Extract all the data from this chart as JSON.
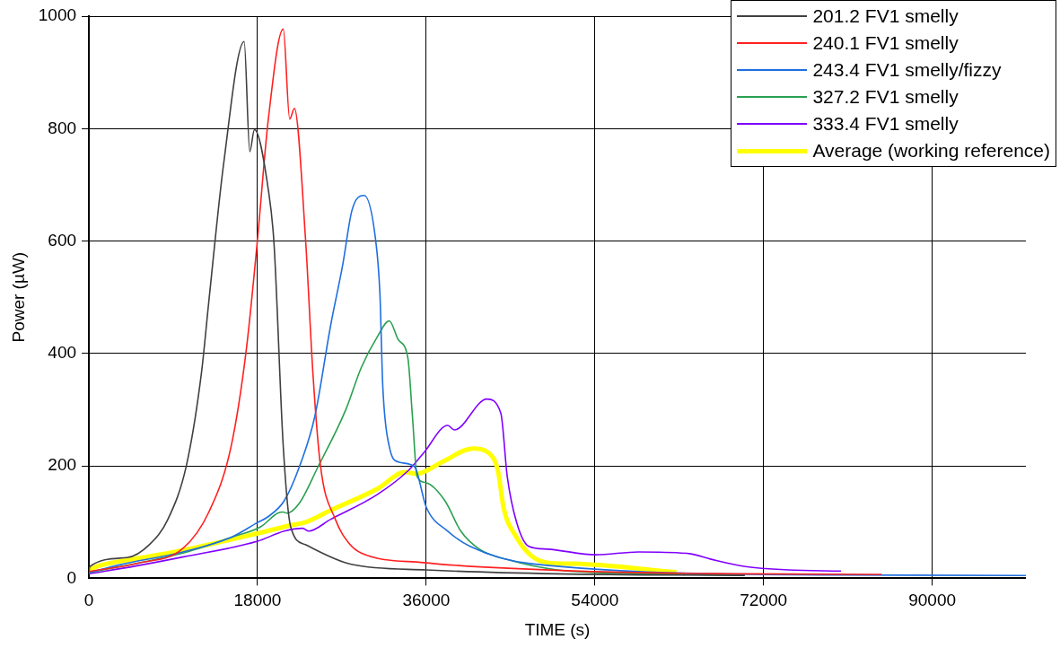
{
  "chart_data": {
    "type": "line",
    "xlabel": "TIME (s)",
    "ylabel": "Power (µW)",
    "xlim": [
      0,
      100000
    ],
    "ylim": [
      0,
      1000
    ],
    "xticks": [
      0,
      18000,
      36000,
      54000,
      72000,
      90000
    ],
    "yticks": [
      0,
      200,
      400,
      600,
      800,
      1000
    ],
    "grid": true,
    "legend": "top right",
    "marker": "none",
    "line_style": "solid",
    "series": [
      {
        "name": "201.2 FV1 smelly",
        "color": "#404040",
        "x": [
          0,
          100,
          4070,
          6450,
          8430,
          10420,
          12000,
          12800,
          14390,
          16570,
          17170,
          17660,
          19150,
          19750,
          20740,
          21530,
          23100,
          28000,
          36000,
          50000,
          70000
        ],
        "values": [
          12,
          21,
          37,
          60,
          105,
          202,
          364,
          493,
          739,
          955,
          759,
          798,
          691,
          597,
          235,
          92,
          60,
          25,
          15,
          8,
          5
        ]
      },
      {
        "name": "240.1 FV1 smelly",
        "color": "#ff2020",
        "x": [
          0,
          5260,
          10020,
          12800,
          15180,
          16770,
          17960,
          19150,
          20740,
          21430,
          21930,
          23120,
          23910,
          24700,
          26300,
          27880,
          29070,
          35720,
          54000,
          70000,
          84600
        ],
        "values": [
          12,
          27,
          53,
          118,
          235,
          403,
          597,
          817,
          977,
          817,
          836,
          603,
          364,
          202,
          105,
          60,
          45,
          28,
          12,
          8,
          7
        ]
      },
      {
        "name": "243.4 FV1 smelly/fizzy",
        "color": "#1f6fe0",
        "x": [
          0,
          3270,
          10020,
          15180,
          17960,
          19150,
          20840,
          22430,
          24110,
          25800,
          27090,
          28080,
          29370,
          30560,
          31060,
          31360,
          32050,
          33040,
          34730,
          36020,
          38300,
          40680,
          47230,
          80000,
          100000
        ],
        "values": [
          10,
          24,
          47,
          73,
          99,
          110,
          138,
          197,
          288,
          450,
          558,
          655,
          681,
          607,
          505,
          343,
          235,
          207,
          199,
          126,
          84,
          57,
          26,
          6,
          5
        ]
      },
      {
        "name": "327.2 FV1 smelly",
        "color": "#2aa050",
        "x": [
          0,
          10020,
          15180,
          18360,
          20140,
          20740,
          21140,
          22430,
          24410,
          27390,
          29070,
          30760,
          32050,
          33040,
          34040,
          34530,
          35030,
          36020,
          38000,
          39690,
          41680,
          44950,
          50000,
          60000,
          70000
        ],
        "values": [
          10,
          45,
          73,
          92,
          116,
          118,
          116,
          133,
          197,
          299,
          375,
          429,
          458,
          424,
          392,
          288,
          181,
          170,
          138,
          84,
          52,
          32,
          15,
          8,
          6
        ]
      },
      {
        "name": "333.4 FV1 smelly",
        "color": "#8000ff",
        "x": [
          0,
          5000,
          10000,
          18000,
          20840,
          22820,
          23420,
          25800,
          30760,
          34040,
          35720,
          38300,
          39000,
          42470,
          43960,
          44650,
          45640,
          46940,
          48920,
          54080,
          58650,
          64100,
          66400,
          70060,
          74620,
          80280
        ],
        "values": [
          8,
          22,
          38,
          66,
          84,
          89,
          84,
          105,
          149,
          191,
          223,
          272,
          264,
          319,
          294,
          181,
          100,
          57,
          52,
          42,
          47,
          44,
          34,
          21,
          15,
          13
        ]
      },
      {
        "name": "Average (working reference)",
        "color": "#ffff00",
        "x": [
          0,
          1000,
          5000,
          10000,
          18000,
          21430,
          23120,
          25800,
          30760,
          33740,
          35030,
          37700,
          40980,
          42670,
          43660,
          44250,
          45640,
          47230,
          48920,
          51800,
          62700
        ],
        "values": [
          15,
          22,
          35,
          50,
          80,
          94,
          100,
          121,
          159,
          189,
          186,
          207,
          231,
          223,
          191,
          126,
          73,
          40,
          28,
          26,
          11
        ]
      }
    ]
  }
}
